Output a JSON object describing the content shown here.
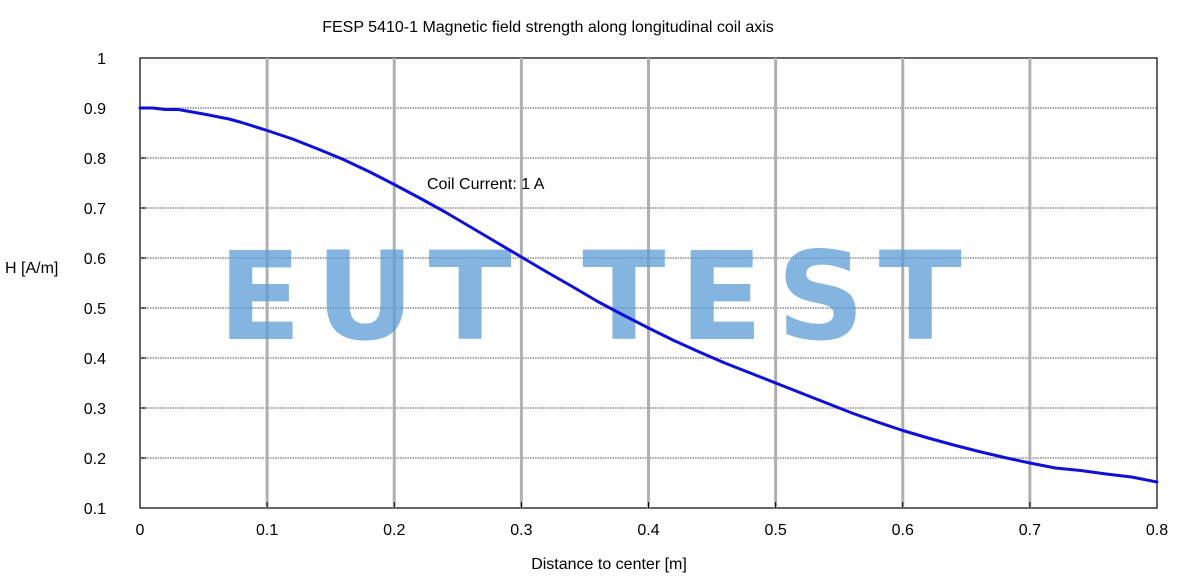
{
  "chart_data": {
    "type": "line",
    "title": "FESP 5410-1 Magnetic field strength along longitudinal coil axis",
    "xlabel": "Distance to center [m]",
    "ylabel": "H [A/m]",
    "xlim": [
      0,
      0.8
    ],
    "ylim": [
      0.1,
      1.0
    ],
    "grid": true,
    "x_ticks": [
      "0",
      "0.1",
      "0.2",
      "0.3",
      "0.4",
      "0.5",
      "0.6",
      "0.7",
      "0.8"
    ],
    "y_ticks": [
      "1",
      "0.9",
      "0.8",
      "0.7",
      "0.6",
      "0.5",
      "0.4",
      "0.3",
      "0.2",
      "0.1"
    ],
    "annotation": "Coil Current: 1 A",
    "watermark": "EUT TEST",
    "series": [
      {
        "name": "H",
        "color": "#1010d8",
        "x": [
          0,
          0.01,
          0.02,
          0.03,
          0.05,
          0.07,
          0.08,
          0.1,
          0.12,
          0.14,
          0.16,
          0.18,
          0.2,
          0.22,
          0.24,
          0.26,
          0.28,
          0.3,
          0.32,
          0.34,
          0.36,
          0.38,
          0.4,
          0.42,
          0.44,
          0.46,
          0.48,
          0.5,
          0.52,
          0.54,
          0.56,
          0.58,
          0.6,
          0.62,
          0.64,
          0.66,
          0.68,
          0.7,
          0.72,
          0.74,
          0.76,
          0.78,
          0.8
        ],
        "y": [
          0.9,
          0.9,
          0.897,
          0.897,
          0.888,
          0.878,
          0.871,
          0.855,
          0.838,
          0.818,
          0.797,
          0.773,
          0.747,
          0.72,
          0.692,
          0.662,
          0.632,
          0.602,
          0.572,
          0.543,
          0.513,
          0.486,
          0.46,
          0.435,
          0.412,
          0.39,
          0.37,
          0.35,
          0.33,
          0.31,
          0.29,
          0.272,
          0.255,
          0.24,
          0.226,
          0.213,
          0.201,
          0.19,
          0.18,
          0.175,
          0.168,
          0.162,
          0.152
        ]
      }
    ]
  }
}
